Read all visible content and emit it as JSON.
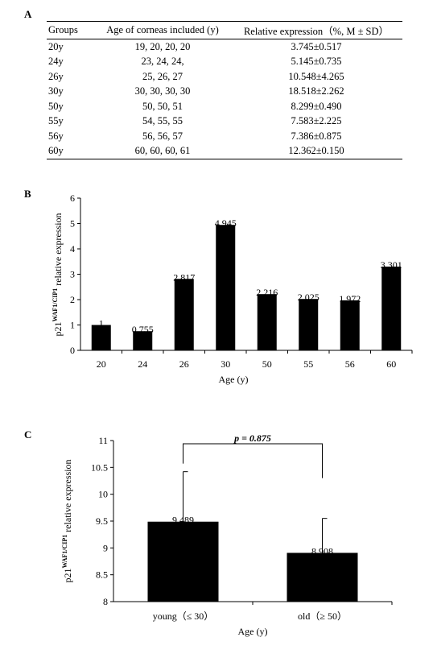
{
  "panels": {
    "a": "A",
    "b": "B",
    "c": "C"
  },
  "table": {
    "headers": [
      "Groups",
      "Age of corneas included (y)",
      "Relative expression（%, M ± SD）"
    ],
    "rows": [
      [
        "20y",
        "19, 20, 20, 20",
        "3.745±0.517"
      ],
      [
        "24y",
        "23, 24, 24,",
        "5.145±0.735"
      ],
      [
        "26y",
        "25, 26, 27",
        "10.548±4.265"
      ],
      [
        "30y",
        "30, 30, 30, 30",
        "18.518±2.262"
      ],
      [
        "50y",
        "50, 50, 51",
        "8.299±0.490"
      ],
      [
        "55y",
        "54, 55, 55",
        "7.583±2.225"
      ],
      [
        "56y",
        "56, 56, 57",
        "7.386±0.875"
      ],
      [
        "60y",
        "60, 60, 60, 61",
        "12.362±0.150"
      ]
    ]
  },
  "chart_data": [
    {
      "type": "bar",
      "panel": "B",
      "categories": [
        "20",
        "24",
        "26",
        "30",
        "50",
        "55",
        "56",
        "60"
      ],
      "values": [
        1,
        0.755,
        2.817,
        4.945,
        2.216,
        2.025,
        1.972,
        3.301
      ],
      "data_labels": [
        "1",
        "0.755",
        "2.817",
        "4.945",
        "2.216",
        "2.025",
        "1.972",
        "3.301"
      ],
      "ylabel_base": "p21",
      "ylabel_sup": "WAF1/CIP1",
      "ylabel_rest": " relative expression",
      "xlabel": "Age (y)",
      "ylim": [
        0,
        6
      ],
      "yticks": [
        "0",
        "1",
        "2",
        "3",
        "4",
        "5",
        "6"
      ],
      "bar_color": "#000000"
    },
    {
      "type": "bar",
      "panel": "C",
      "categories": [
        "young（≤ 30）",
        "old（≥ 50）"
      ],
      "values": [
        9.489,
        8.908
      ],
      "data_labels": [
        "9.489",
        "8.908"
      ],
      "error_upper": [
        10.42,
        9.55
      ],
      "ylabel_base": "p21",
      "ylabel_sup": "WAF1/CIP1",
      "ylabel_rest": " relative expression",
      "xlabel": "Age (y)",
      "ylim": [
        8,
        11
      ],
      "yticks": [
        "8",
        "8.5",
        "9",
        "9.5",
        "10",
        "10.5",
        "11"
      ],
      "annotation": "p = 0.875",
      "bar_color": "#000000"
    }
  ]
}
